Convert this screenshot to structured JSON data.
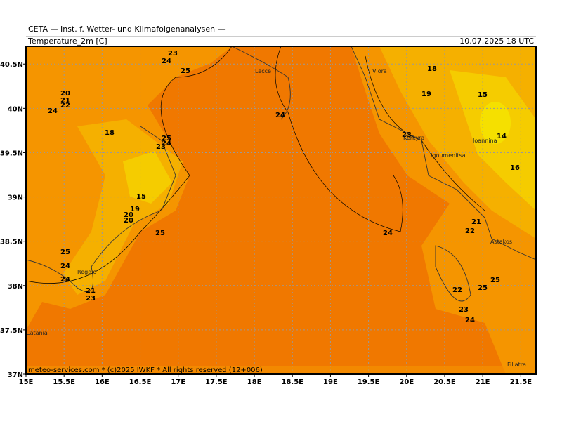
{
  "header": {
    "title": "CETA — Inst. f. Wetter- und Klimafolgenanalysen —",
    "variable": "Temperature_2m [C]",
    "date": "10.07.2025 18 UTC"
  },
  "footer": "meteo-services.com * (c)2025 IWKF * All rights reserved (12+006)",
  "map": {
    "xlim": [
      15,
      21.7
    ],
    "ylim": [
      37,
      40.7
    ],
    "xticks": [
      {
        "value": 15,
        "label": "15E"
      },
      {
        "value": 15.5,
        "label": "15.5E"
      },
      {
        "value": 16,
        "label": "16E"
      },
      {
        "value": 16.5,
        "label": "16.5E"
      },
      {
        "value": 17,
        "label": "17E"
      },
      {
        "value": 17.5,
        "label": "17.5E"
      },
      {
        "value": 18,
        "label": "18E"
      },
      {
        "value": 18.5,
        "label": "18.5E"
      },
      {
        "value": 19,
        "label": "19E"
      },
      {
        "value": 19.5,
        "label": "19.5E"
      },
      {
        "value": 20,
        "label": "20E"
      },
      {
        "value": 20.5,
        "label": "20.5E"
      },
      {
        "value": 21,
        "label": "21E"
      },
      {
        "value": 21.5,
        "label": "21.5E"
      }
    ],
    "yticks": [
      {
        "value": 37,
        "label": "37N"
      },
      {
        "value": 37.5,
        "label": "37.5N"
      },
      {
        "value": 38,
        "label": "38N"
      },
      {
        "value": 38.5,
        "label": "38.5N"
      },
      {
        "value": 39,
        "label": "39N"
      },
      {
        "value": 39.5,
        "label": "39.5N"
      },
      {
        "value": 40,
        "label": "40N"
      },
      {
        "value": 40.5,
        "label": "40.5N"
      }
    ],
    "contour_labels": [
      23,
      24,
      25,
      20,
      21,
      22,
      24,
      18,
      25,
      24,
      23,
      15,
      19,
      20,
      20,
      25,
      25,
      24,
      24,
      21,
      23,
      24,
      18,
      19,
      15,
      14,
      16,
      23,
      24,
      21,
      22,
      22,
      25,
      25,
      23,
      24
    ],
    "places": [
      "Lecce",
      "Vlora",
      "Kerkyra",
      "Igoumenitsa",
      "Ioannina",
      "Astakos",
      "Reggio",
      "Catania",
      "Filiatra"
    ]
  }
}
